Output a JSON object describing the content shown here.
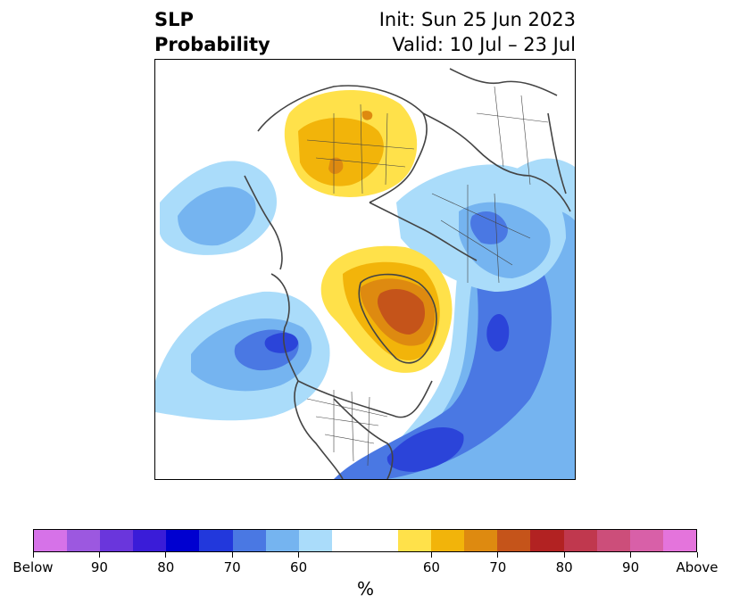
{
  "title": {
    "left_line1": "SLP",
    "left_line2": "Probability",
    "right_line1": "Init: Sun 25 Jun 2023",
    "right_line2": "Valid: 10 Jul – 23 Jul"
  },
  "map": {
    "name": "Northern Hemisphere sea level pressure probability map",
    "colors": {
      "blue_40": "#aadcfa",
      "blue_50": "#75b4f0",
      "blue_60": "#4a78e3",
      "blue_70": "#2b44d9",
      "yellow_40": "#ffe14a",
      "yellow_50": "#f2b40a",
      "orange_60": "#de8a10",
      "orange_70": "#c5541a",
      "land_line": "#444444"
    }
  },
  "colorbar": {
    "colors": [
      "#d672e8",
      "#9c58e0",
      "#6a36dc",
      "#3a1cd8",
      "#0000d0",
      "#2238dc",
      "#4a78e3",
      "#75b4f0",
      "#aadcfa",
      "#ffffff",
      "#ffffff",
      "#ffe14a",
      "#f2b40a",
      "#de8a10",
      "#c5541a",
      "#b22222",
      "#c0384e",
      "#cc4e7a",
      "#d860a8",
      "#e474dc"
    ],
    "tick_labels": [
      "Below",
      "90",
      "80",
      "70",
      "60",
      "60",
      "70",
      "80",
      "90",
      "Above"
    ],
    "unit": "%"
  }
}
